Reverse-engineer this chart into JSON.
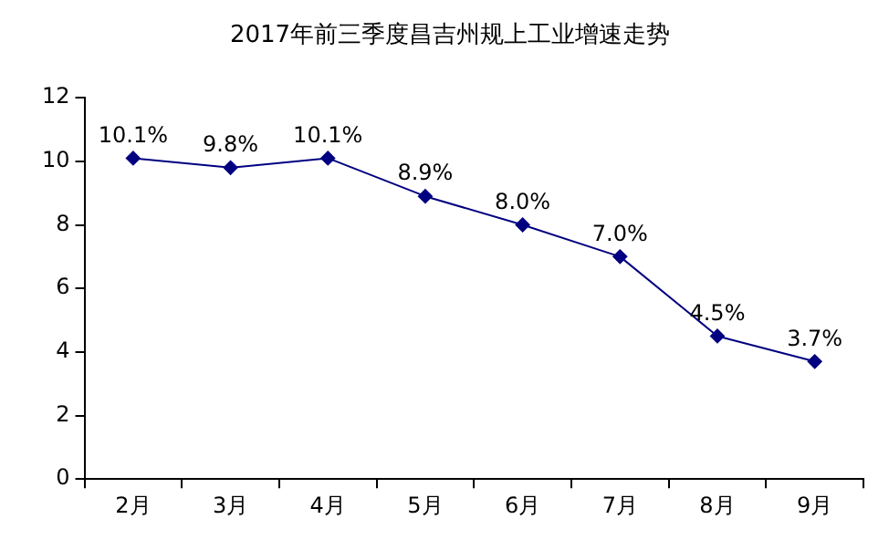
{
  "chart_data": {
    "type": "line",
    "title": "2017年前三季度昌吉州规上工业增速走势",
    "categories": [
      "2月",
      "3月",
      "4月",
      "5月",
      "6月",
      "7月",
      "8月",
      "9月"
    ],
    "series": [
      {
        "color": "#000080",
        "values": [
          10.1,
          9.8,
          10.1,
          8.9,
          8.0,
          7.0,
          4.5,
          3.7
        ],
        "value_labels": [
          "10.1%",
          "9.8%",
          "10.1%",
          "8.9%",
          "8.0%",
          "7.0%",
          "4.5%",
          "3.7%"
        ]
      }
    ],
    "ylim": [
      0,
      12
    ],
    "yticks": [
      0,
      2,
      4,
      6,
      8,
      10,
      12
    ],
    "grid": false,
    "legend": false,
    "marker": "diamond",
    "line_style": "solid"
  }
}
